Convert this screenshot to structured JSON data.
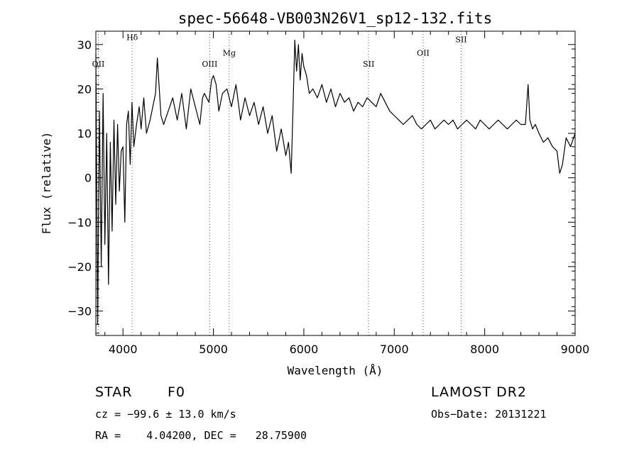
{
  "chart_data": {
    "type": "line",
    "title": "spec-56648-VB003N26V1_sp12-132.fits",
    "xlabel": "Wavelength (Å)",
    "ylabel": "Flux (relative)",
    "xlim": [
      3700,
      9000
    ],
    "ylim": [
      -35.5,
      33
    ],
    "xticks": [
      4000,
      5000,
      6000,
      7000,
      8000,
      9000
    ],
    "yticks": [
      -30,
      -20,
      -10,
      0,
      10,
      20,
      30
    ],
    "ytick_labels": [
      "−30",
      "−20",
      "−10",
      "0",
      "10",
      "20",
      "30"
    ],
    "grid": false,
    "line_color": "#000000",
    "marker_color": "#555555",
    "series": [
      {
        "x": [
          3700,
          3720,
          3740,
          3760,
          3780,
          3800,
          3820,
          3840,
          3860,
          3880,
          3900,
          3920,
          3940,
          3960,
          3980,
          4000,
          4020,
          4040,
          4060,
          4080,
          4100,
          4120,
          4150,
          4180,
          4200,
          4230,
          4260,
          4300,
          4340,
          4360,
          4380,
          4420,
          4450,
          4500,
          4550,
          4600,
          4650,
          4700,
          4750,
          4800,
          4850,
          4880,
          4900,
          4950,
          4980,
          5000,
          5030,
          5060,
          5100,
          5150,
          5200,
          5250,
          5300,
          5350,
          5400,
          5450,
          5500,
          5550,
          5600,
          5650,
          5700,
          5750,
          5800,
          5830,
          5860,
          5880,
          5900,
          5920,
          5940,
          5960,
          5980,
          6000,
          6030,
          6060,
          6100,
          6150,
          6200,
          6250,
          6300,
          6350,
          6400,
          6450,
          6500,
          6550,
          6600,
          6650,
          6700,
          6750,
          6800,
          6850,
          6900,
          6950,
          7000,
          7050,
          7100,
          7150,
          7200,
          7250,
          7300,
          7350,
          7400,
          7450,
          7500,
          7550,
          7600,
          7650,
          7700,
          7750,
          7800,
          7850,
          7900,
          7950,
          8000,
          8050,
          8100,
          8150,
          8200,
          8250,
          8300,
          8350,
          8400,
          8450,
          8480,
          8500,
          8530,
          8560,
          8600,
          8650,
          8700,
          8750,
          8800,
          8830,
          8860,
          8900,
          8950,
          9000
        ],
        "y": [
          28,
          -33,
          15,
          -20,
          19,
          -15,
          10,
          -24,
          8,
          -12,
          13,
          -6,
          12,
          -3,
          6,
          7,
          -10,
          12,
          15,
          3,
          17,
          7,
          12,
          16,
          11,
          18,
          10,
          13,
          17,
          19,
          27,
          14,
          12,
          15,
          18,
          13,
          19,
          11,
          20,
          16,
          12,
          18,
          19,
          17,
          22,
          23,
          21,
          15,
          19,
          20,
          16,
          21,
          13,
          18,
          14,
          17,
          12,
          16,
          10,
          14,
          6,
          11,
          5,
          8,
          1,
          15,
          31,
          24,
          30,
          22,
          28,
          25,
          23,
          19,
          20,
          18,
          21,
          17,
          20,
          16,
          19,
          17,
          18,
          15,
          17,
          16,
          18,
          17,
          16,
          19,
          17,
          15,
          14,
          13,
          12,
          13,
          14,
          12,
          11,
          12,
          13,
          11,
          12,
          13,
          12,
          13,
          11,
          12,
          13,
          12,
          11,
          13,
          12,
          11,
          12,
          13,
          12,
          11,
          12,
          13,
          12,
          12,
          21,
          13,
          11,
          12,
          10,
          8,
          9,
          7,
          6,
          1,
          3,
          9,
          7,
          10
        ]
      }
    ],
    "line_markers": [
      {
        "label": "OII",
        "x": 3727,
        "label_y": 25
      },
      {
        "label": "Hδ",
        "x": 4102,
        "label_y": 31
      },
      {
        "label": "OIII",
        "x": 4959,
        "label_y": 25
      },
      {
        "label": "Mg",
        "x": 5175,
        "label_y": 27.5
      },
      {
        "label": "SII",
        "x": 6717,
        "label_y": 25
      },
      {
        "label": "OII",
        "x": 7320,
        "label_y": 27.5
      },
      {
        "label": "SII",
        "x": 7740,
        "label_y": 30.5
      }
    ]
  },
  "info": {
    "object_type": "STAR",
    "subclass": "F0",
    "survey": "LAMOST DR2",
    "cz_line": "cz = −99.6 ± 13.0 km/s",
    "obs_date_line": "Obs−Date: 20131221",
    "coords_line": "RA =    4.04200, DEC =   28.75900"
  }
}
